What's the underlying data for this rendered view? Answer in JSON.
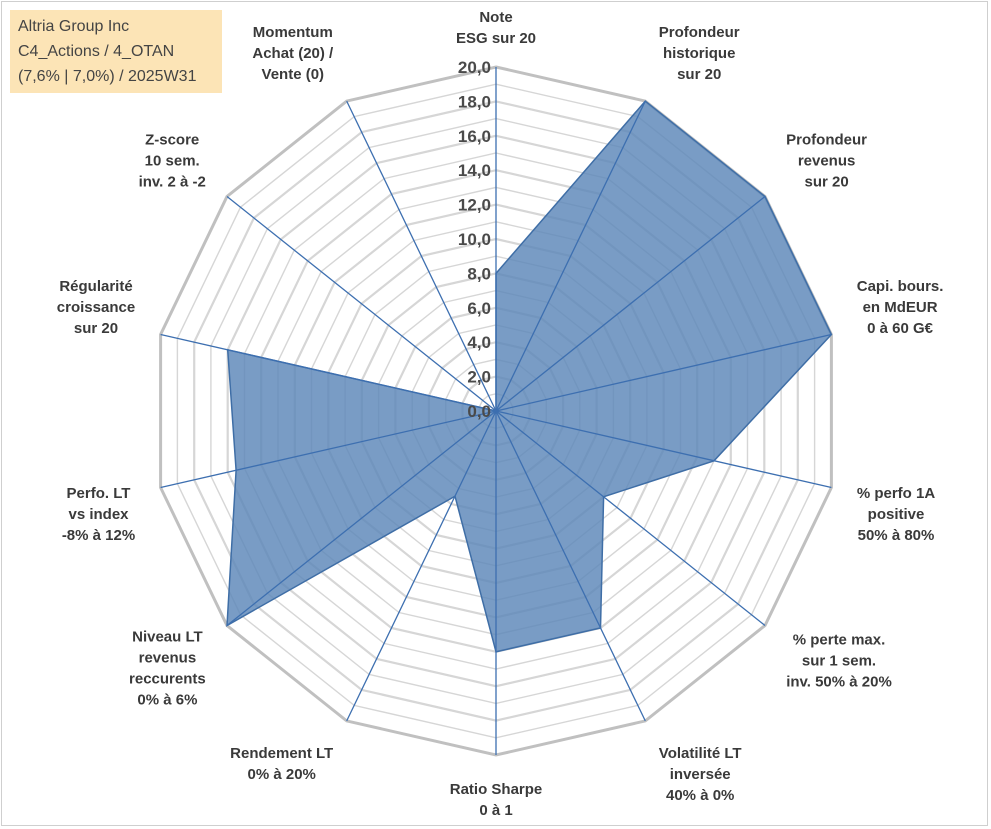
{
  "info_box": {
    "line1": "Altria Group Inc",
    "line2": "C4_Actions / 4_OTAN",
    "line3": "(7,6% | 7,0%) / 2025W31"
  },
  "colors": {
    "fill": "#5b86b8",
    "stroke": "#3f6ea6",
    "grid_outer": "#c0c0c0",
    "grid_inner": "#d6d6d6",
    "spoke": "#3d6fb0",
    "info_bg": "#fce4b6"
  },
  "chart_data": {
    "type": "radar",
    "rmax": 20,
    "ticks": [
      "0,0",
      "2,0",
      "4,0",
      "6,0",
      "8,0",
      "10,0",
      "12,0",
      "14,0",
      "16,0",
      "18,0",
      "20,0"
    ],
    "tick_values": [
      0,
      2,
      4,
      6,
      8,
      10,
      12,
      14,
      16,
      18,
      20
    ],
    "grid": true,
    "categories": [
      [
        "Note",
        "ESG sur 20"
      ],
      [
        "Profondeur",
        "historique",
        "sur 20"
      ],
      [
        "Profondeur",
        "revenus",
        "sur 20"
      ],
      [
        "Capi. bours.",
        "en MdEUR",
        "0 à 60 G€"
      ],
      [
        "% perfo 1A",
        "positive",
        "50% à 80%"
      ],
      [
        "% perte max.",
        "sur 1 sem.",
        "inv. 50% à 20%"
      ],
      [
        "Volatilité LT",
        "inversée",
        "40% à 0%"
      ],
      [
        "Ratio Sharpe",
        "0 à 1"
      ],
      [
        "Rendement LT",
        "0% à 20%"
      ],
      [
        "Niveau LT",
        "revenus",
        "reccurents",
        "0% à 6%"
      ],
      [
        "Perfo. LT",
        "vs index",
        "-8% à 12%"
      ],
      [
        "Régularité",
        "croissance",
        "sur 20"
      ],
      [
        "Z-score",
        "10 sem.",
        "inv. 2 à -2"
      ],
      [
        "Momentum",
        "Achat (20) /",
        "Vente (0)"
      ]
    ],
    "values": [
      8.0,
      20.0,
      20.0,
      20.0,
      13.0,
      8.0,
      14.0,
      14.0,
      5.5,
      20.0,
      15.5,
      16.0,
      0.0,
      0.0
    ]
  }
}
